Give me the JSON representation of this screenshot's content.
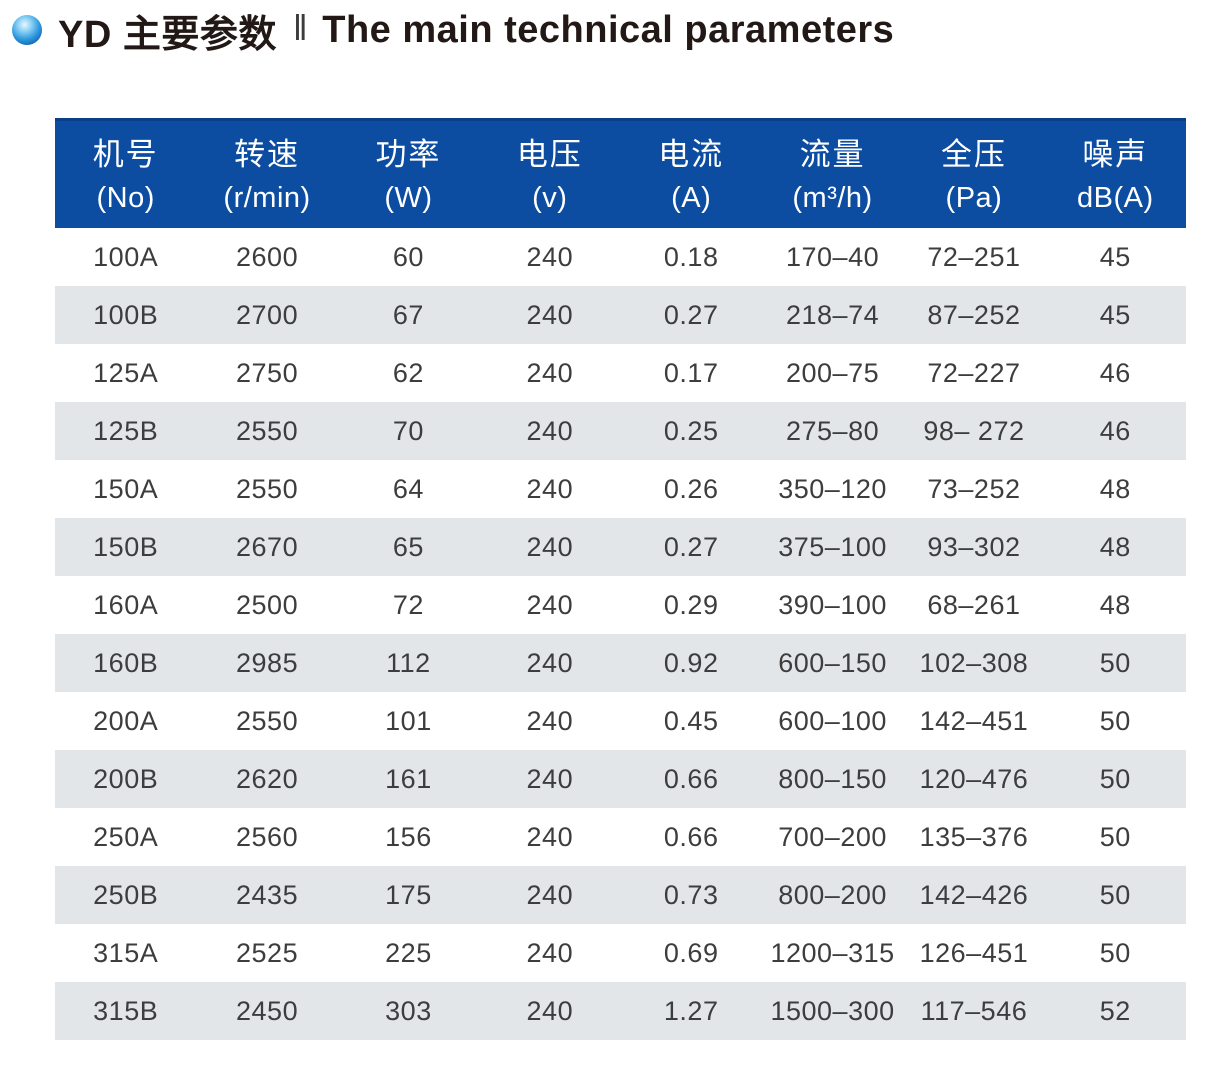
{
  "page": {
    "title_cn": "YD 主要参数",
    "title_separator": "‖",
    "title_en": "The main technical parameters"
  },
  "colors": {
    "header_bg": "#0c4da2",
    "header_text": "#ffffff",
    "row_bg": "#ffffff",
    "row_alt_bg": "#e2e6e9",
    "body_text": "#3d3d3d",
    "title_text": "#221815",
    "bullet_blue": "#2f9ade"
  },
  "chart_data": {
    "type": "table",
    "title": "YD 主要参数 ‖ The main technical parameters",
    "columns": [
      {
        "cn": "机号",
        "unit": "(No)"
      },
      {
        "cn": "转速",
        "unit": "(r/min)"
      },
      {
        "cn": "功率",
        "unit": "(W)"
      },
      {
        "cn": "电压",
        "unit": "(v)"
      },
      {
        "cn": "电流",
        "unit": "(A)"
      },
      {
        "cn": "流量",
        "unit": "(m³/h)"
      },
      {
        "cn": "全压",
        "unit": "(Pa)"
      },
      {
        "cn": "噪声",
        "unit": "dB(A)"
      }
    ],
    "rows": [
      [
        "100A",
        "2600",
        "60",
        "240",
        "0.18",
        "170–40",
        "72–251",
        "45"
      ],
      [
        "100B",
        "2700",
        "67",
        "240",
        "0.27",
        "218–74",
        "87–252",
        "45"
      ],
      [
        "125A",
        "2750",
        "62",
        "240",
        "0.17",
        "200–75",
        "72–227",
        "46"
      ],
      [
        "125B",
        "2550",
        "70",
        "240",
        "0.25",
        "275–80",
        "98– 272",
        "46"
      ],
      [
        "150A",
        "2550",
        "64",
        "240",
        "0.26",
        "350–120",
        "73–252",
        "48"
      ],
      [
        "150B",
        "2670",
        "65",
        "240",
        "0.27",
        "375–100",
        "93–302",
        "48"
      ],
      [
        "160A",
        "2500",
        "72",
        "240",
        "0.29",
        "390–100",
        "68–261",
        "48"
      ],
      [
        "160B",
        "2985",
        "112",
        "240",
        "0.92",
        "600–150",
        "102–308",
        "50"
      ],
      [
        "200A",
        "2550",
        "101",
        "240",
        "0.45",
        "600–100",
        "142–451",
        "50"
      ],
      [
        "200B",
        "2620",
        "161",
        "240",
        "0.66",
        "800–150",
        "120–476",
        "50"
      ],
      [
        "250A",
        "2560",
        "156",
        "240",
        "0.66",
        "700–200",
        "135–376",
        "50"
      ],
      [
        "250B",
        "2435",
        "175",
        "240",
        "0.73",
        "800–200",
        "142–426",
        "50"
      ],
      [
        "315A",
        "2525",
        "225",
        "240",
        "0.69",
        "1200–315",
        "126–451",
        "50"
      ],
      [
        "315B",
        "2450",
        "303",
        "240",
        "1.27",
        "1500–300",
        "117–546",
        "52"
      ]
    ]
  }
}
